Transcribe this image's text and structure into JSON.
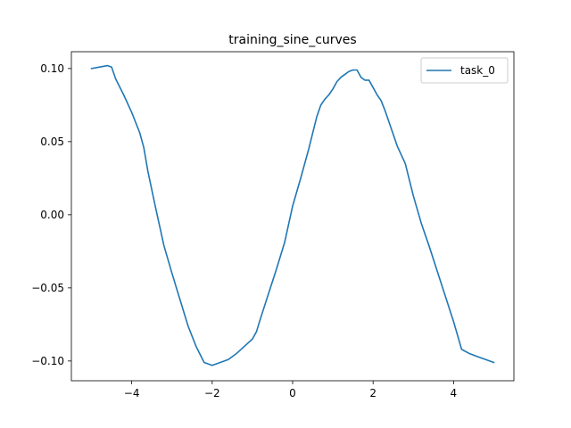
{
  "chart_data": {
    "type": "line",
    "title": "training_sine_curves",
    "xlabel": "",
    "ylabel": "",
    "xlim": [
      -5.5,
      5.5
    ],
    "ylim": [
      -0.1135,
      0.1115
    ],
    "xticks": [
      -4,
      -2,
      0,
      2,
      4
    ],
    "xtick_labels": [
      "−4",
      "−2",
      "0",
      "2",
      "4"
    ],
    "yticks": [
      0.1,
      0.05,
      0.0,
      -0.05,
      -0.1
    ],
    "ytick_labels": [
      "0.10",
      "0.05",
      "0.00",
      "−0.05",
      "−0.10"
    ],
    "grid": false,
    "legend": {
      "position": "top-right",
      "entries": [
        "task_0"
      ]
    },
    "series": [
      {
        "name": "task_0",
        "color": "#1f77b4",
        "x": [
          -5.0,
          -4.8,
          -4.6,
          -4.5,
          -4.4,
          -4.2,
          -4.0,
          -3.8,
          -3.7,
          -3.6,
          -3.4,
          -3.2,
          -3.0,
          -2.8,
          -2.6,
          -2.4,
          -2.2,
          -2.0,
          -1.9,
          -1.8,
          -1.7,
          -1.6,
          -1.4,
          -1.2,
          -1.0,
          -0.9,
          -0.8,
          -0.6,
          -0.4,
          -0.2,
          0.0,
          0.2,
          0.4,
          0.6,
          0.7,
          0.8,
          0.9,
          1.0,
          1.1,
          1.2,
          1.3,
          1.4,
          1.5,
          1.6,
          1.7,
          1.75,
          1.8,
          1.9,
          2.0,
          2.1,
          2.2,
          2.3,
          2.4,
          2.5,
          2.6,
          2.8,
          3.0,
          3.2,
          3.4,
          3.6,
          3.8,
          4.0,
          4.2,
          4.4,
          4.6,
          4.8,
          5.0
        ],
        "y": [
          0.1,
          0.101,
          0.102,
          0.101,
          0.093,
          0.082,
          0.07,
          0.056,
          0.046,
          0.03,
          0.004,
          -0.021,
          -0.04,
          -0.058,
          -0.076,
          -0.09,
          -0.101,
          -0.103,
          -0.102,
          -0.101,
          -0.1,
          -0.099,
          -0.095,
          -0.09,
          -0.085,
          -0.08,
          -0.071,
          -0.054,
          -0.037,
          -0.019,
          0.006,
          0.025,
          0.045,
          0.067,
          0.075,
          0.079,
          0.082,
          0.086,
          0.091,
          0.094,
          0.096,
          0.098,
          0.099,
          0.099,
          0.094,
          0.093,
          0.092,
          0.092,
          0.087,
          0.082,
          0.078,
          0.071,
          0.063,
          0.055,
          0.047,
          0.035,
          0.013,
          -0.006,
          -0.022,
          -0.039,
          -0.056,
          -0.073,
          -0.092,
          -0.095,
          -0.097,
          -0.099,
          -0.101
        ]
      }
    ]
  }
}
